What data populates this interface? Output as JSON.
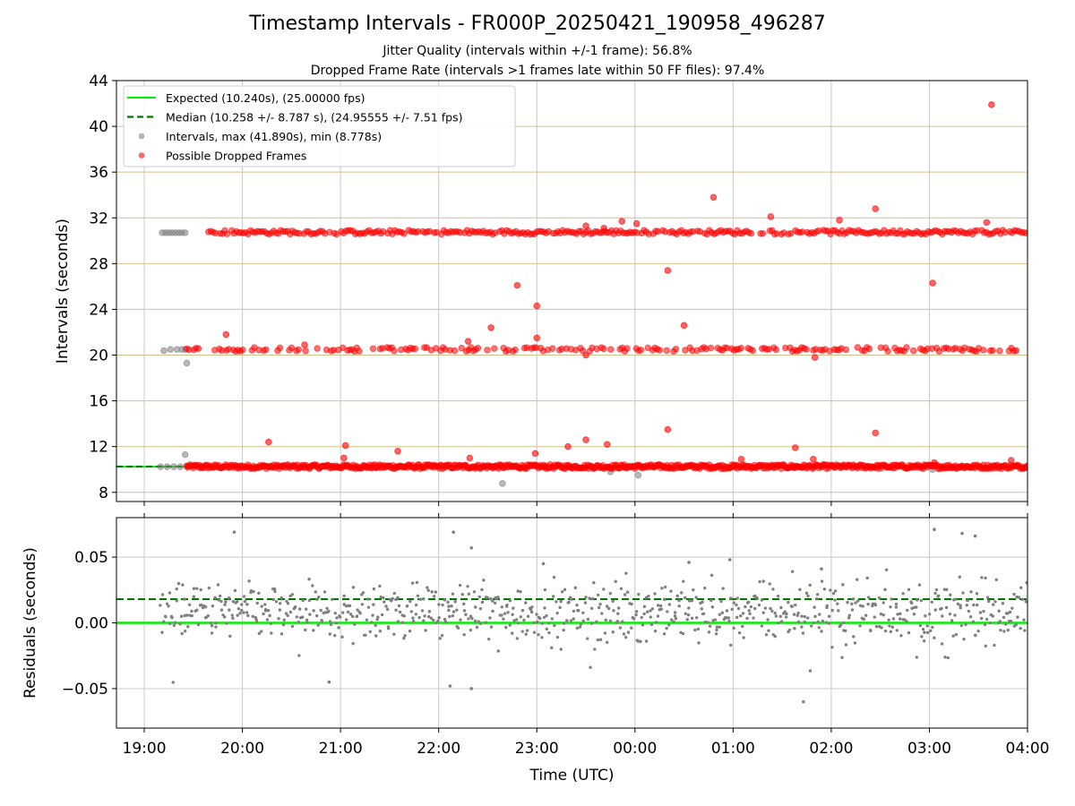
{
  "chart_data": [
    {
      "type": "scatter",
      "title": "Timestamp Intervals - FR000P_20250421_190958_496287",
      "subtitle_lines": [
        "Jitter Quality (intervals within +/-1 frame): 56.8%",
        "Dropped Frame Rate (intervals >1 frames late within 50 FF files): 97.4%"
      ],
      "ylabel": "Intervals (seconds)",
      "xlabel": "",
      "xlim": [
        "18:43",
        "04:00"
      ],
      "ylim": [
        7.2,
        44
      ],
      "yticks": [
        8,
        12,
        16,
        20,
        24,
        28,
        32,
        36,
        40,
        44
      ],
      "grid": "on",
      "colors": {
        "expected": "#00ee00",
        "median": "#007700",
        "intervals": "#808080",
        "dropped": "#ff0000",
        "hgrid": "#d4c08a",
        "vgrid": "#c8c8c8"
      },
      "legend_placement": "top-left",
      "legend": [
        {
          "label": "Expected (10.240s), (25.00000 fps)",
          "style": "solid-line",
          "color": "#00ee00"
        },
        {
          "label": "Median (10.258 +/- 8.787 s), (24.95555 +/- 7.51 fps)",
          "style": "dashed-line",
          "color": "#007700"
        },
        {
          "label": "Intervals, max (41.890s), min (8.778s)",
          "style": "marker",
          "color": "#808080"
        },
        {
          "label": "Possible Dropped Frames",
          "style": "marker",
          "color": "#ff0000"
        }
      ],
      "reference_lines": {
        "expected": 10.24,
        "median": 10.258
      },
      "series": [
        {
          "name": "Intervals, max (41.890s), min (8.778s)",
          "points": [
            [
              "19:11",
              30.7
            ],
            [
              "19:13",
              30.7
            ],
            [
              "19:15",
              30.7
            ],
            [
              "19:17",
              30.7
            ],
            [
              "19:19",
              30.7
            ],
            [
              "19:21",
              30.7
            ],
            [
              "19:23",
              30.7
            ],
            [
              "19:25",
              30.7
            ],
            [
              "19:12",
              20.4
            ],
            [
              "19:16",
              20.5
            ],
            [
              "19:20",
              20.5
            ],
            [
              "19:23",
              20.5
            ],
            [
              "19:25",
              20.5
            ],
            [
              "19:26",
              19.3
            ],
            [
              "19:10",
              10.24
            ],
            [
              "19:14",
              10.24
            ],
            [
              "19:18",
              10.24
            ],
            [
              "19:22",
              10.24
            ],
            [
              "19:25",
              11.3
            ],
            [
              "19:26",
              10.3
            ],
            [
              "22:39",
              8.78
            ],
            [
              "23:45",
              9.8
            ],
            [
              "00:02",
              9.5
            ],
            [
              "03:02",
              10.0
            ]
          ]
        },
        {
          "name": "Possible Dropped Frames",
          "points": [
            [
              "19:50",
              21.8
            ],
            [
              "20:16",
              12.4
            ],
            [
              "21:03",
              12.1
            ],
            [
              "21:02",
              11.0
            ],
            [
              "21:35",
              11.6
            ],
            [
              "22:19",
              11.0
            ],
            [
              "22:18",
              21.2
            ],
            [
              "22:32",
              22.4
            ],
            [
              "22:48",
              26.1
            ],
            [
              "23:00",
              24.3
            ],
            [
              "23:00",
              21.5
            ],
            [
              "22:59",
              11.4
            ],
            [
              "23:19",
              12.0
            ],
            [
              "23:30",
              12.6
            ],
            [
              "23:30",
              31.3
            ],
            [
              "23:43",
              12.2
            ],
            [
              "23:41",
              31.1
            ],
            [
              "23:52",
              31.7
            ],
            [
              "00:01",
              31.5
            ],
            [
              "00:20",
              27.4
            ],
            [
              "00:20",
              13.5
            ],
            [
              "00:30",
              22.6
            ],
            [
              "00:48",
              33.8
            ],
            [
              "01:05",
              10.9
            ],
            [
              "01:23",
              32.1
            ],
            [
              "01:38",
              11.9
            ],
            [
              "01:50",
              19.8
            ],
            [
              "01:49",
              10.9
            ],
            [
              "02:05",
              31.8
            ],
            [
              "02:27",
              32.8
            ],
            [
              "02:27",
              13.2
            ],
            [
              "03:02",
              26.3
            ],
            [
              "03:03",
              10.6
            ],
            [
              "03:35",
              31.6
            ],
            [
              "03:38",
              41.89
            ],
            [
              "03:50",
              10.8
            ],
            [
              "03:53",
              20.4
            ],
            [
              "23:30",
              20.0
            ],
            [
              "20:38",
              20.9
            ]
          ],
          "bands": [
            {
              "from": "19:26",
              "to": "04:00",
              "value": 10.25
            },
            {
              "from": "19:35",
              "to": "04:00",
              "value": 30.75
            },
            {
              "from": "19:26",
              "to": "03:55",
              "value": 20.5
            }
          ]
        }
      ]
    },
    {
      "type": "scatter",
      "xlabel": "Time (UTC)",
      "ylabel": "Residuals (seconds)",
      "xlim": [
        "18:43",
        "04:00"
      ],
      "ylim": [
        -0.08,
        0.08
      ],
      "yticks": [
        -0.05,
        0.0,
        0.05
      ],
      "ytick_labels": [
        "−0.05",
        "0.00",
        "0.05"
      ],
      "xticks": [
        "19:00",
        "20:00",
        "21:00",
        "22:00",
        "23:00",
        "00:00",
        "01:00",
        "02:00",
        "03:00",
        "04:00"
      ],
      "grid": "on",
      "reference_lines": {
        "expected": 0.0,
        "median": 0.018
      },
      "series": [
        {
          "name": "",
          "summary": "about 800 residual points, mostly between -0.01 and 0.025 s, extremes -0.060 s (01:43) to 0.071 s (03:03)",
          "notable_points": [
            [
              "19:55",
              0.069
            ],
            [
              "22:09",
              0.069
            ],
            [
              "22:20",
              0.057
            ],
            [
              "03:03",
              0.071
            ],
            [
              "03:20",
              0.068
            ],
            [
              "03:28",
              0.066
            ],
            [
              "01:43",
              -0.06
            ],
            [
              "22:20",
              -0.05
            ],
            [
              "22:07",
              -0.048
            ],
            [
              "20:53",
              -0.045
            ],
            [
              "01:54",
              0.041
            ],
            [
              "23:04",
              0.045
            ],
            [
              "00:33",
              0.046
            ],
            [
              "00:58",
              0.048
            ]
          ]
        }
      ]
    }
  ]
}
